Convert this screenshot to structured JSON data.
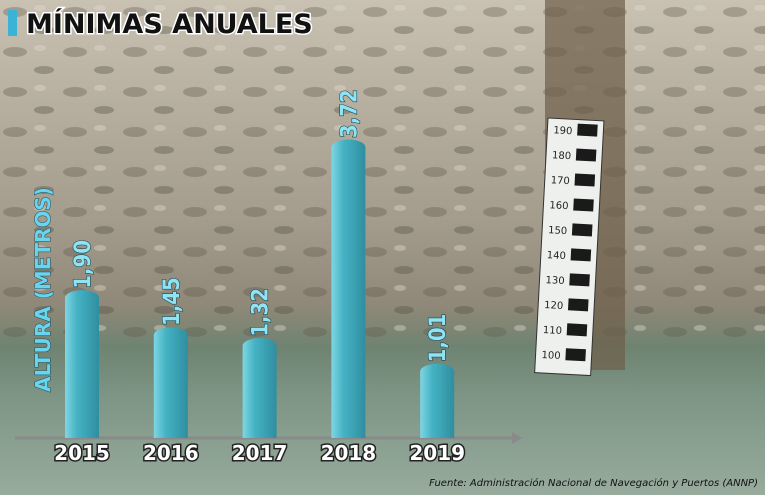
{
  "chart_data": {
    "type": "bar",
    "title": "MÍNIMAS ANUALES",
    "y_label": "ALTURA (METROS)",
    "categories": [
      "2015",
      "2016",
      "2017",
      "2018",
      "2019"
    ],
    "values": [
      1.9,
      1.45,
      1.32,
      3.72,
      1.01
    ],
    "value_labels": [
      "1,90",
      "1,45",
      "1,32",
      "3,72",
      "1,01"
    ],
    "color": "#45b3c4",
    "ylim": [
      0,
      4
    ],
    "source": "Fuente: Administración Nacional de Navegación y Puertos (ANNP)"
  },
  "gauge": {
    "labels": [
      "190",
      "180",
      "170",
      "160",
      "150",
      "140",
      "130",
      "120",
      "110",
      "100"
    ]
  }
}
